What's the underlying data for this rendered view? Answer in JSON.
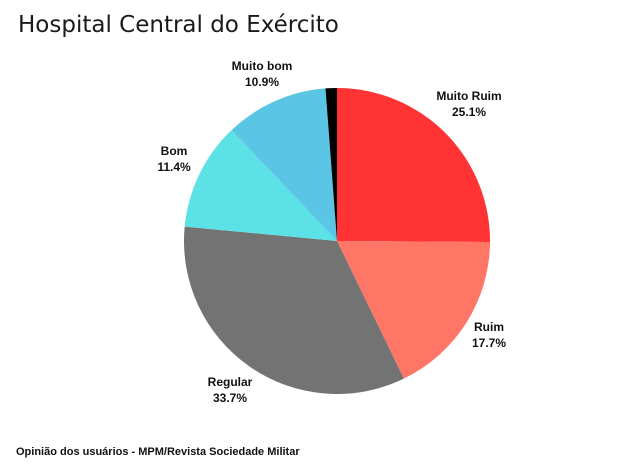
{
  "chart_data": {
    "type": "pie",
    "title": "Hospital Central do Exército",
    "categories": [
      "Muito Ruim",
      "Ruim",
      "Regular",
      "Bom",
      "Muito bom",
      ""
    ],
    "values": [
      25.1,
      17.7,
      33.7,
      11.4,
      10.9,
      1.2
    ],
    "value_labels": [
      "25.1%",
      "17.7%",
      "33.7%",
      "11.4%",
      "10.9%",
      ""
    ],
    "colors": [
      "#ff3333",
      "#ff7566",
      "#737373",
      "#5ce1e6",
      "#5bc5e6",
      "#000000"
    ],
    "legend": "none"
  },
  "footer": {
    "source": "Opinião dos usuários - MPM/Revista Sociedade Militar"
  }
}
